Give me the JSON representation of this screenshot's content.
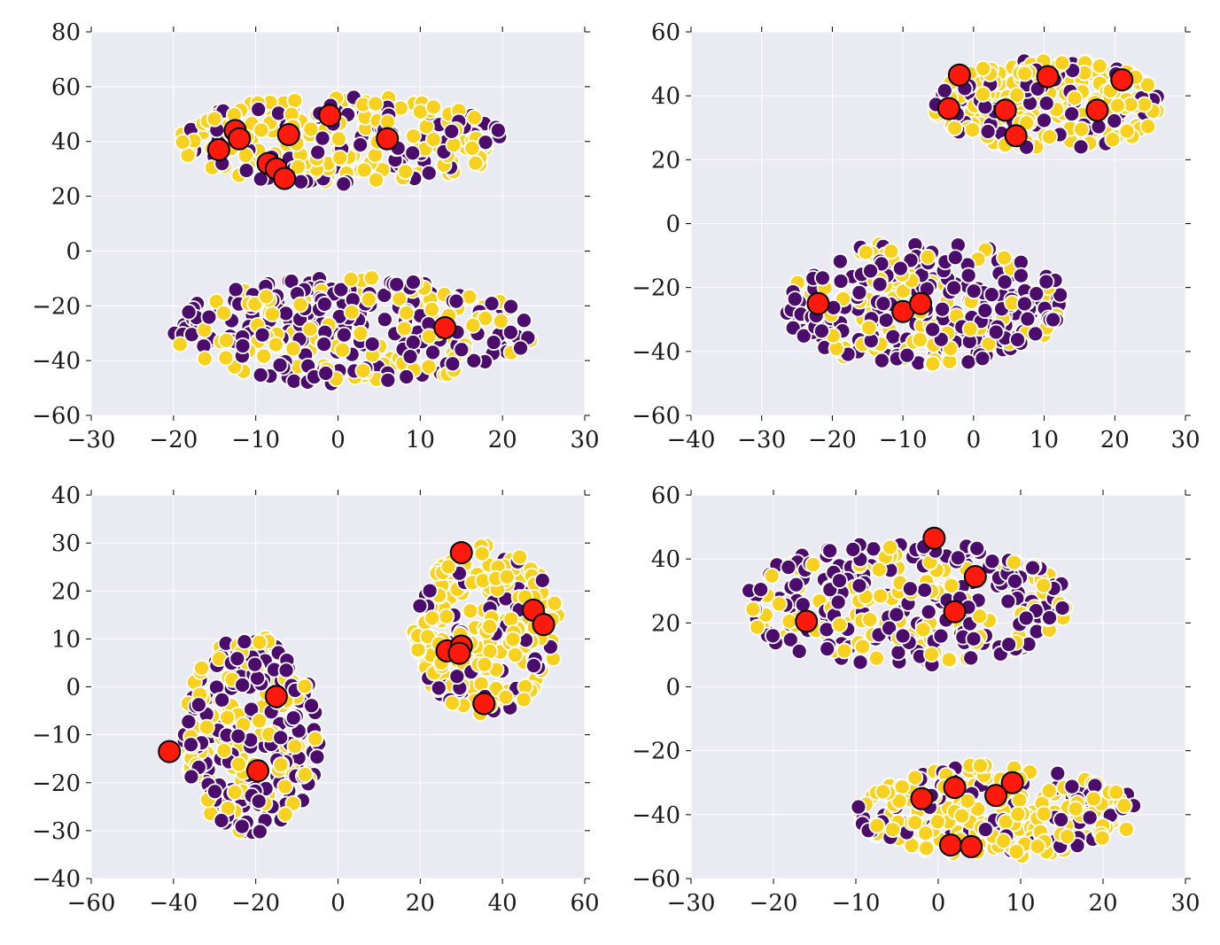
{
  "chart_data": [
    {
      "type": "scatter",
      "title": "",
      "xlabel": "",
      "ylabel": "",
      "xlim": [
        -30,
        30
      ],
      "ylim": [
        -60,
        80
      ],
      "xticks": [
        -30,
        -20,
        -10,
        0,
        10,
        20,
        30
      ],
      "yticks": [
        -60,
        -40,
        -20,
        0,
        20,
        40,
        60,
        80
      ],
      "grid": true,
      "colors": {
        "class_0": "#4b0c6b",
        "class_1": "#f7d11e",
        "highlight": "#ff1a0d",
        "background": "#eaeaf2"
      },
      "clusters": [
        {
          "cx": 0.6,
          "cy": 40,
          "rx": 20.5,
          "ry": 17,
          "n_purple": 90,
          "n_yellow": 170
        },
        {
          "cx": 1.8,
          "cy": -29,
          "rx": 22.5,
          "ry": 20,
          "n_purple": 190,
          "n_yellow": 110
        }
      ],
      "highlighted": [
        [
          -14.5,
          37
        ],
        [
          -12.5,
          44
        ],
        [
          -12,
          41
        ],
        [
          -6,
          42.5
        ],
        [
          -1,
          49.5
        ],
        [
          6,
          41
        ],
        [
          -8.5,
          32
        ],
        [
          -7.5,
          30
        ],
        [
          -6.5,
          26.5
        ],
        [
          13,
          -28
        ]
      ]
    },
    {
      "type": "scatter",
      "title": "",
      "xlabel": "",
      "ylabel": "",
      "xlim": [
        -40,
        30
      ],
      "ylim": [
        -60,
        60
      ],
      "xticks": [
        -40,
        -30,
        -20,
        -10,
        0,
        10,
        20,
        30
      ],
      "yticks": [
        -60,
        -40,
        -20,
        0,
        20,
        40,
        60
      ],
      "grid": true,
      "colors": {
        "class_0": "#4b0c6b",
        "class_1": "#f7d11e",
        "highlight": "#ff1a0d",
        "background": "#eaeaf2"
      },
      "clusters": [
        {
          "cx": 10.5,
          "cy": 37,
          "rx": 16.5,
          "ry": 15,
          "n_purple": 60,
          "n_yellow": 200
        },
        {
          "cx": -7.5,
          "cy": -25,
          "rx": 21,
          "ry": 20,
          "n_purple": 190,
          "n_yellow": 110
        }
      ],
      "highlighted": [
        [
          -2,
          46.5
        ],
        [
          10.5,
          46
        ],
        [
          21,
          45
        ],
        [
          -3.5,
          36
        ],
        [
          4.5,
          35.5
        ],
        [
          17.5,
          35.5
        ],
        [
          6,
          27.5
        ],
        [
          -22,
          -25
        ],
        [
          -10,
          -27.5
        ],
        [
          -7.5,
          -25
        ]
      ]
    },
    {
      "type": "scatter",
      "title": "",
      "xlabel": "",
      "ylabel": "",
      "xlim": [
        -60,
        60
      ],
      "ylim": [
        -40,
        40
      ],
      "xticks": [
        -60,
        -40,
        -20,
        0,
        20,
        40,
        60
      ],
      "yticks": [
        -40,
        -30,
        -20,
        -10,
        0,
        10,
        20,
        30,
        40
      ],
      "grid": true,
      "colors": {
        "class_0": "#4b0c6b",
        "class_1": "#f7d11e",
        "highlight": "#ff1a0d",
        "background": "#eaeaf2"
      },
      "clusters": [
        {
          "cx": -21,
          "cy": -10,
          "rx": 17,
          "ry": 21,
          "n_purple": 170,
          "n_yellow": 120
        },
        {
          "cx": 36,
          "cy": 12,
          "rx": 18,
          "ry": 18,
          "n_purple": 50,
          "n_yellow": 200
        }
      ],
      "highlighted": [
        [
          30,
          28
        ],
        [
          47.5,
          16
        ],
        [
          50,
          13
        ],
        [
          26.5,
          7.5
        ],
        [
          30,
          8.5
        ],
        [
          29.5,
          7
        ],
        [
          35.5,
          -3.5
        ],
        [
          -15,
          -2
        ],
        [
          -41,
          -13.5
        ],
        [
          -19.5,
          -17.5
        ]
      ]
    },
    {
      "type": "scatter",
      "title": "",
      "xlabel": "",
      "ylabel": "",
      "xlim": [
        -30,
        30
      ],
      "ylim": [
        -60,
        60
      ],
      "xticks": [
        -30,
        -20,
        -10,
        0,
        10,
        20,
        30
      ],
      "yticks": [
        -60,
        -40,
        -20,
        0,
        20,
        40,
        60
      ],
      "grid": true,
      "colors": {
        "class_0": "#4b0c6b",
        "class_1": "#f7d11e",
        "highlight": "#ff1a0d",
        "background": "#eaeaf2"
      },
      "clusters": [
        {
          "cx": -4,
          "cy": 26,
          "rx": 20.5,
          "ry": 20,
          "n_purple": 210,
          "n_yellow": 110
        },
        {
          "cx": 7,
          "cy": -39,
          "rx": 17.5,
          "ry": 15,
          "n_purple": 70,
          "n_yellow": 200
        }
      ],
      "highlighted": [
        [
          -0.5,
          46.5
        ],
        [
          4.5,
          34.5
        ],
        [
          2,
          23.5
        ],
        [
          -16,
          20.5
        ],
        [
          -2,
          -35
        ],
        [
          2,
          -31.5
        ],
        [
          9,
          -30
        ],
        [
          7,
          -34
        ],
        [
          1.5,
          -49.5
        ],
        [
          4,
          -50
        ]
      ]
    }
  ]
}
